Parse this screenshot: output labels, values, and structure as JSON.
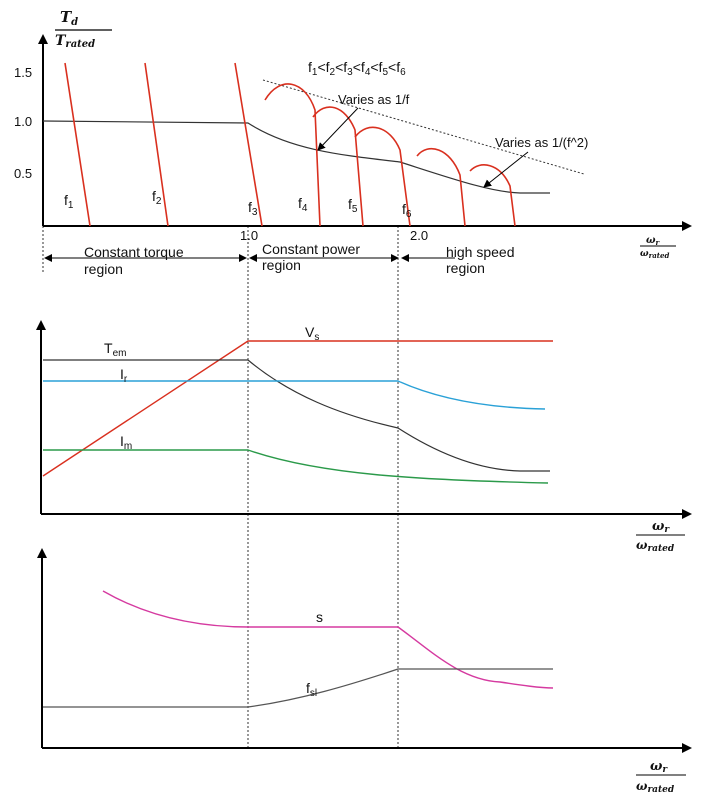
{
  "colors": {
    "red": "#d9301f",
    "black": "#333333",
    "blue": "#2aa1d7",
    "green": "#2b9a4a",
    "magenta": "#d53aa0",
    "gray": "#555555"
  },
  "panel1": {
    "y_num": "T",
    "y_num_sub": "d",
    "y_den": "T",
    "y_den_sub": "rated",
    "x_num": "ω",
    "x_num_sub": "r",
    "x_den": "ω",
    "x_den_sub": "rated",
    "ticks_y": [
      "1.5",
      "1.0",
      "0.5"
    ],
    "ticks_x": [
      "1.0",
      "2.0"
    ],
    "freq_order_parts": [
      "f",
      "1",
      "<f",
      "2",
      "<f",
      "3",
      "<f",
      "4",
      "<f",
      "5",
      "<f",
      "6"
    ],
    "freq_labels": [
      {
        "base": "f",
        "sub": "1"
      },
      {
        "base": "f",
        "sub": "2"
      },
      {
        "base": "f",
        "sub": "3"
      },
      {
        "base": "f",
        "sub": "4"
      },
      {
        "base": "f",
        "sub": "5"
      },
      {
        "base": "f",
        "sub": "6"
      }
    ],
    "annotation_1f": "Varies as 1/f",
    "annotation_1f2": "Varies as 1/(f^2)",
    "regions": {
      "constant_torque_1": "Constant torque",
      "constant_torque_2": "region",
      "constant_power_1": "Constant power",
      "constant_power_2": "region",
      "high_speed_1": "high speed",
      "high_speed_2": "region"
    }
  },
  "panel2": {
    "labels": {
      "vs": "V",
      "vs_sub": "s",
      "tem": "T",
      "tem_sub": "em",
      "ir": "I",
      "ir_sub": "r",
      "im": "I",
      "im_sub": "m"
    },
    "x_num": "ω",
    "x_num_sub": "r",
    "x_den": "ω",
    "x_den_sub": "rated"
  },
  "panel3": {
    "labels": {
      "s": "s",
      "fsl": "f",
      "fsl_sub": "sl"
    },
    "x_num": "ω",
    "x_num_sub": "r",
    "x_den": "ω",
    "x_den_sub": "rated"
  }
}
